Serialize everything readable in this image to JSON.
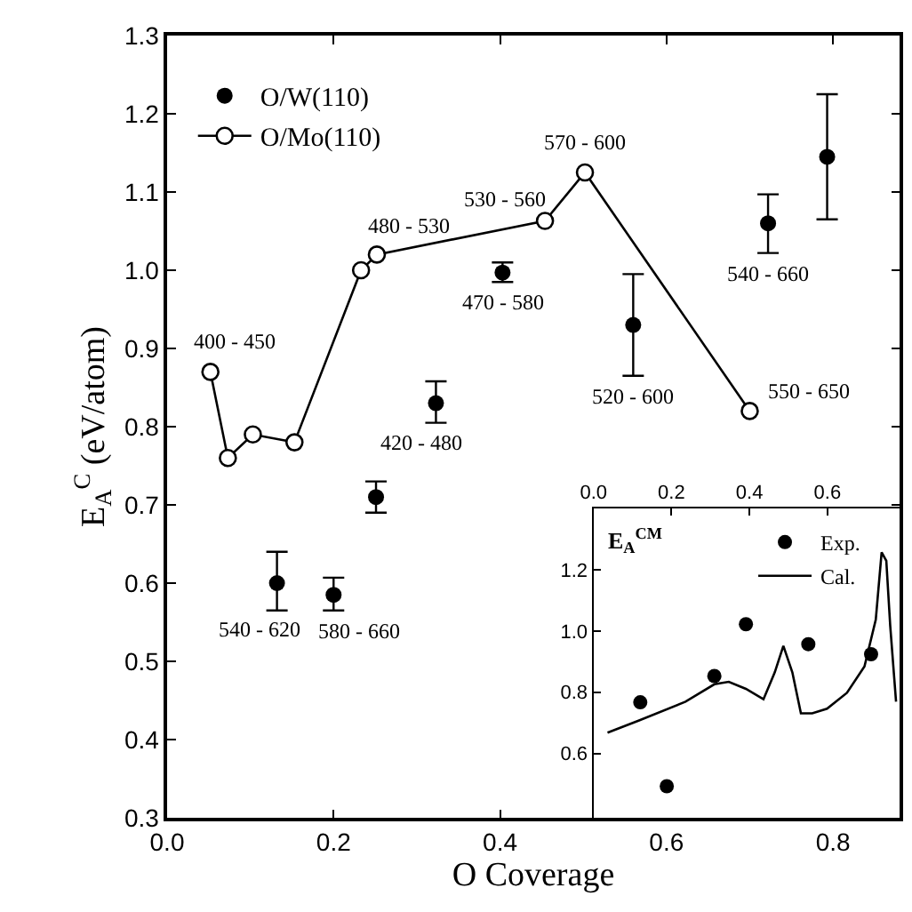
{
  "chart_data": [
    {
      "type": "scatter",
      "xlabel": "O Coverage",
      "ylabel": "E$_{A}$$^{C}$ (eV/atom)",
      "xlim": [
        0,
        0.88
      ],
      "ylim": [
        0.3,
        1.3
      ],
      "xticks": [
        {
          "value": 0,
          "label": "0.0"
        },
        0.2,
        0.4,
        0.6,
        0.8
      ],
      "yticks": [
        0.3,
        0.4,
        0.5,
        0.6,
        0.7,
        0.8,
        0.9,
        {
          "value": 1,
          "label": "1.0"
        },
        1.1,
        1.2,
        1.3
      ],
      "legend": "top left",
      "series": [
        {
          "name": "O/W(110)",
          "marker": "circle",
          "color": "#000000",
          "x": [
            0.132,
            0.2,
            0.251,
            0.323,
            0.403,
            0.56,
            0.722,
            0.793
          ],
          "values": [
            0.6,
            0.585,
            0.71,
            0.83,
            0.997,
            0.93,
            1.06,
            1.145
          ],
          "errors": [
            [
              0.565,
              0.64
            ],
            [
              0.565,
              0.607
            ],
            [
              0.69,
              0.73
            ],
            [
              0.805,
              0.858
            ],
            [
              0.985,
              1.01
            ],
            [
              0.865,
              0.995
            ],
            [
              1.022,
              1.097
            ],
            [
              1.065,
              1.225
            ]
          ]
        },
        {
          "name": "O/Mo(110)",
          "type": "line",
          "marker": "circle",
          "color": "#000000",
          "x": [
            0.052,
            0.073,
            0.103,
            0.153,
            0.233,
            0.252,
            0.454,
            0.502,
            0.7
          ],
          "values": [
            0.87,
            0.76,
            0.79,
            0.78,
            1.0,
            1.02,
            1.063,
            1.125,
            0.82
          ]
        }
      ],
      "annotations": [
        {
          "text": "400 - 450",
          "x": 0.052,
          "y": 0.87
        },
        {
          "text": "480 - 530",
          "x": 0.252,
          "y": 1.02
        },
        {
          "text": "530 - 560",
          "x": 0.454,
          "y": 1.063
        },
        {
          "text": "570 - 600",
          "x": 0.502,
          "y": 1.125
        },
        {
          "text": "550 - 650",
          "x": 0.7,
          "y": 0.82
        },
        {
          "text": "540 - 660",
          "x": 0.722,
          "y": 1.06
        },
        {
          "text": "520 - 600",
          "x": 0.56,
          "y": 0.93
        },
        {
          "text": "470 - 580",
          "x": 0.403,
          "y": 0.997
        },
        {
          "text": "420 - 480",
          "x": 0.323,
          "y": 0.83
        },
        {
          "text": "540 - 620",
          "x": 0.132,
          "y": 0.6
        },
        {
          "text": "580 - 660",
          "x": 0.2,
          "y": 0.585
        }
      ]
    },
    {
      "type": "scatter",
      "title": "E$_{A}$$^{CM}$",
      "xlim": [
        0,
        0.785
      ],
      "ylim": [
        0.39,
        1.4
      ],
      "xticks": [
        {
          "value": 0,
          "label": "0.0"
        },
        0.2,
        0.4,
        0.6
      ],
      "yticks": [
        0.6,
        0.8,
        {
          "value": 1,
          "label": "1.0"
        },
        1.2
      ],
      "legend": "top right",
      "series": [
        {
          "name": "Exp.",
          "marker": "circle",
          "color": "#000000",
          "x": [
            0.12,
            0.188,
            0.31,
            0.391,
            0.551,
            0.712
          ],
          "values": [
            0.767,
            0.493,
            0.853,
            1.022,
            0.957,
            0.924
          ]
        },
        {
          "name": "Cal.",
          "type": "line",
          "marker": "none",
          "color": "#000000",
          "x": [
            0.036,
            0.117,
            0.236,
            0.31,
            0.347,
            0.391,
            0.436,
            0.465,
            0.487,
            0.51,
            0.532,
            0.561,
            0.599,
            0.65,
            0.695,
            0.724,
            0.739,
            0.751,
            0.761,
            0.776
          ],
          "values": [
            0.668,
            0.708,
            0.769,
            0.826,
            0.834,
            0.811,
            0.777,
            0.865,
            0.951,
            0.865,
            0.731,
            0.731,
            0.746,
            0.798,
            0.884,
            1.037,
            1.257,
            1.229,
            1.018,
            0.769
          ]
        }
      ]
    }
  ]
}
